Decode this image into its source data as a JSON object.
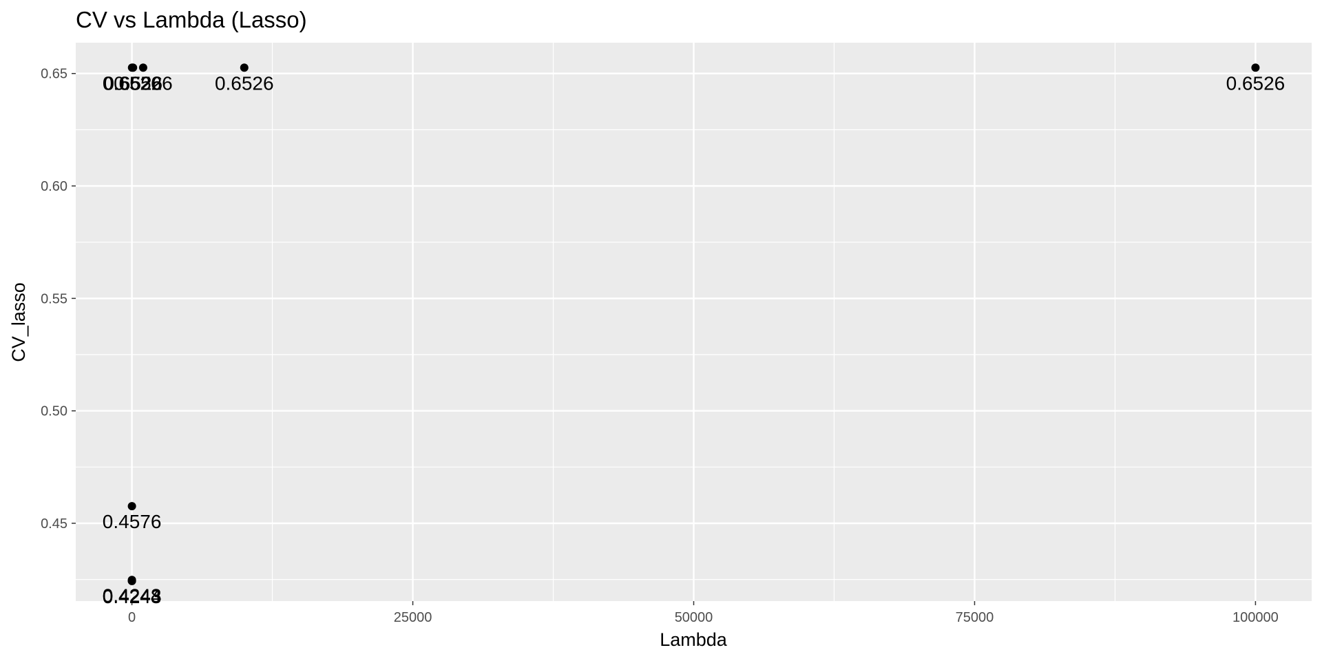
{
  "chart_data": {
    "type": "scatter",
    "title": "CV vs Lambda (Lasso)",
    "xlabel": "Lambda",
    "ylabel": "CV_lasso",
    "xlim": [
      -5000,
      105000
    ],
    "ylim": [
      0.4154,
      0.6637
    ],
    "x_ticks": [
      0,
      25000,
      50000,
      75000,
      100000
    ],
    "x_tick_labels": [
      "0",
      "25000",
      "50000",
      "75000",
      "100000"
    ],
    "y_ticks": [
      0.45,
      0.5,
      0.55,
      0.6,
      0.65
    ],
    "y_tick_labels": [
      "0.45",
      "0.50",
      "0.55",
      "0.60",
      "0.65"
    ],
    "grid": true,
    "points": [
      {
        "x": 0.001,
        "y": 0.4248,
        "label": "0.4248"
      },
      {
        "x": 0.01,
        "y": 0.4244,
        "label": "0.4244"
      },
      {
        "x": 0.1,
        "y": 0.4243,
        "label": "0.4243"
      },
      {
        "x": 1,
        "y": 0.4576,
        "label": "0.4576"
      },
      {
        "x": 10,
        "y": 0.6526,
        "label": "0.6526"
      },
      {
        "x": 100,
        "y": 0.6526,
        "label": "0.6526"
      },
      {
        "x": 1000,
        "y": 0.6526,
        "label": "0.6526"
      },
      {
        "x": 10000,
        "y": 0.6526,
        "label": "0.6526"
      },
      {
        "x": 100000,
        "y": 0.6526,
        "label": "0.6526"
      }
    ],
    "point_color": "#000000",
    "panel_background": "#ebebeb",
    "grid_color": "#ffffff"
  }
}
